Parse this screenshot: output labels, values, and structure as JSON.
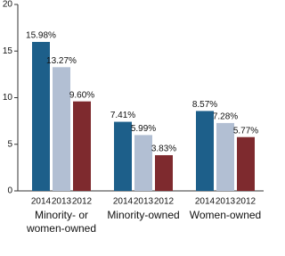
{
  "chart_data": {
    "type": "bar",
    "categories": [
      "Minority- or women-owned",
      "Minority-owned",
      "Women-owned"
    ],
    "series": [
      {
        "name": "2014",
        "color": "#1d5f8a",
        "values": [
          15.98,
          7.41,
          8.57
        ],
        "value_labels": [
          "15.98%",
          "7.41%",
          "8.57%"
        ]
      },
      {
        "name": "2013",
        "color": "#b2bfd3",
        "values": [
          13.27,
          5.99,
          7.28
        ],
        "value_labels": [
          "13.27%",
          "5.99%",
          "7.28%"
        ]
      },
      {
        "name": "2012",
        "color": "#7e2a2e",
        "values": [
          9.6,
          3.83,
          5.77
        ],
        "value_labels": [
          "9.60%",
          "3.83%",
          "5.77%"
        ]
      }
    ],
    "ylim": [
      0,
      20
    ],
    "yticks": [
      0,
      5,
      10,
      15,
      20
    ]
  }
}
